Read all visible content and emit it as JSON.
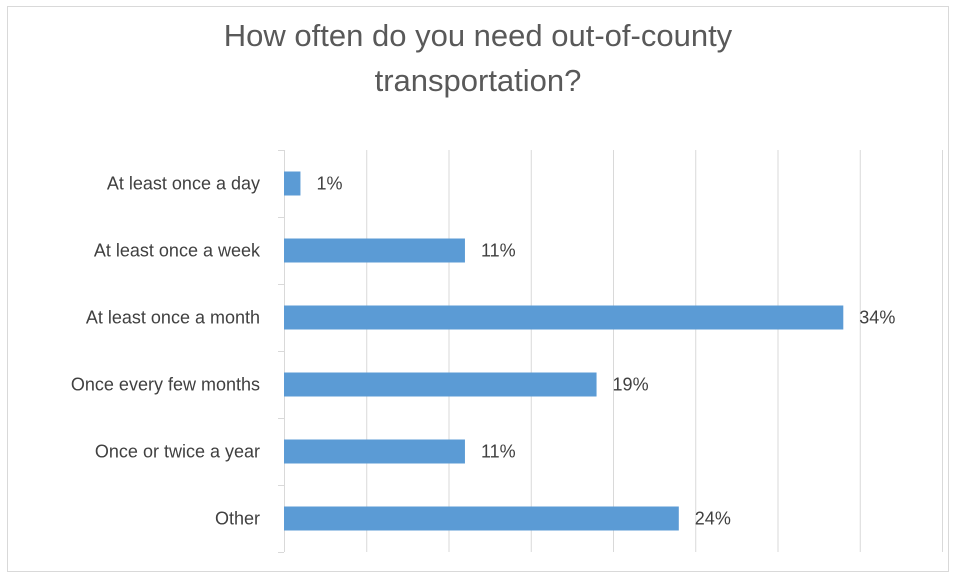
{
  "chart_data": {
    "type": "bar",
    "orientation": "horizontal",
    "title_lines": [
      "How often do you need out-of-county",
      "transportation?"
    ],
    "categories": [
      "At least once a day",
      "At least once a week",
      "At least once a month",
      "Once every few months",
      "Once or twice a year",
      "Other"
    ],
    "values": [
      1,
      11,
      34,
      19,
      11,
      24
    ],
    "value_labels": [
      "1%",
      "11%",
      "34%",
      "19%",
      "11%",
      "24%"
    ],
    "xlim": [
      0,
      40
    ],
    "grid": true,
    "legend": false,
    "bar_color": "#5b9bd5",
    "gridline_color": "#d9d9d9"
  }
}
